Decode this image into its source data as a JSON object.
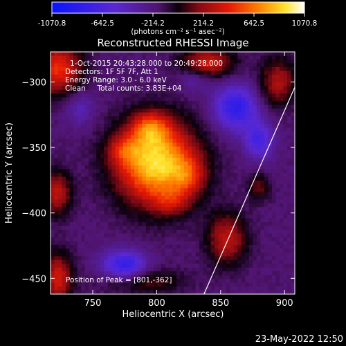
{
  "colorbar": {
    "tick_labels": [
      "-1070.8",
      "-642.5",
      "-214.2",
      "214.2",
      "642.5",
      "1070.8"
    ],
    "tick_values": [
      -1070.8,
      -642.5,
      -214.2,
      214.2,
      642.5,
      1070.8
    ],
    "range": [
      -1070.8,
      1070.8
    ],
    "units_label": "(photons cm⁻² s⁻¹ asec⁻²)"
  },
  "chart_data": {
    "type": "heatmap",
    "title": "Reconstructed RHESSI Image",
    "xlabel": "Heliocentric X (arcsec)",
    "ylabel": "Heliocentric Y (arcsec)",
    "xlim": [
      717,
      908
    ],
    "ylim": [
      -462,
      -277
    ],
    "x_ticks": [
      750,
      800,
      850,
      900
    ],
    "x_tick_labels": [
      "750",
      "800",
      "850",
      "900"
    ],
    "y_ticks": [
      -300,
      -350,
      -400,
      -450
    ],
    "y_tick_labels": [
      "−300",
      "−350",
      "−400",
      "−450"
    ],
    "colormap": "rhessi-blue-purple-red-yellow-white",
    "value_range": [
      -1070.8,
      1070.8
    ],
    "peak": {
      "x": 801,
      "y": -362
    },
    "annotations": [
      "1-Oct-2015 20:43:28.000 to 20:49:28.000",
      "Detectors: 1F 5F 7F, Att 1",
      "Energy Range: 3.0 - 6.0 keV",
      "Clean     Total counts: 3.83E+04",
      "Position of Peak = [801,-362]"
    ],
    "limb_line": {
      "x": [
        837,
        908
      ],
      "y": [
        -462,
        -304
      ]
    },
    "blobs": [
      {
        "x": 800,
        "y": -362,
        "sx": 22,
        "sy": 22,
        "amp": 1100
      },
      {
        "x": 795,
        "y": -335,
        "sx": 10,
        "sy": 9,
        "amp": 450
      },
      {
        "x": 774,
        "y": -352,
        "sx": 9,
        "sy": 8,
        "amp": 300
      },
      {
        "x": 825,
        "y": -372,
        "sx": 9,
        "sy": 10,
        "amp": 320
      },
      {
        "x": 812,
        "y": -392,
        "sx": 10,
        "sy": 7,
        "amp": 250
      },
      {
        "x": 723,
        "y": -290,
        "sx": 13,
        "sy": 14,
        "amp": 650
      },
      {
        "x": 840,
        "y": -285,
        "sx": 14,
        "sy": 8,
        "amp": 550
      },
      {
        "x": 895,
        "y": -300,
        "sx": 10,
        "sy": 13,
        "amp": 450
      },
      {
        "x": 722,
        "y": -385,
        "sx": 8,
        "sy": 12,
        "amp": 500
      },
      {
        "x": 723,
        "y": -450,
        "sx": 8,
        "sy": 14,
        "amp": 550
      },
      {
        "x": 790,
        "y": -452,
        "sx": 22,
        "sy": 7,
        "amp": 300
      },
      {
        "x": 855,
        "y": -420,
        "sx": 11,
        "sy": 14,
        "amp": 500
      },
      {
        "x": 880,
        "y": -380,
        "sx": 6,
        "sy": 8,
        "amp": 300
      },
      {
        "x": 862,
        "y": -320,
        "sx": 12,
        "sy": 12,
        "amp": -650
      },
      {
        "x": 880,
        "y": -345,
        "sx": 8,
        "sy": 10,
        "amp": -500
      },
      {
        "x": 775,
        "y": -440,
        "sx": 12,
        "sy": 8,
        "amp": -650
      },
      {
        "x": 740,
        "y": -320,
        "sx": 8,
        "sy": 9,
        "amp": -250
      },
      {
        "x": 830,
        "y": -298,
        "sx": 8,
        "sy": 7,
        "amp": -200
      }
    ],
    "background_level": -180
  },
  "footer": {
    "timestamp": "23-May-2022 12:50"
  }
}
